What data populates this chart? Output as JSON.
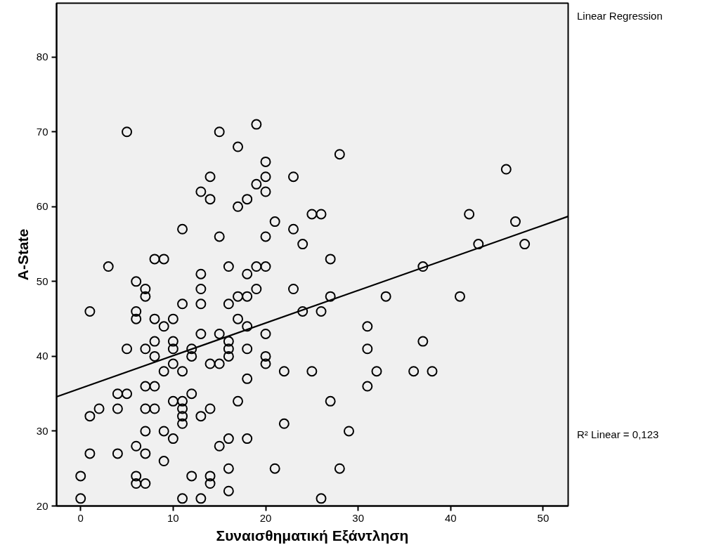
{
  "chart_data": {
    "type": "scatter",
    "xlabel": "Συναισθηματική Εξάντληση",
    "ylabel": "A-State",
    "annotations": [
      "Linear Regression",
      "R² Linear = 0,123"
    ],
    "xlim": [
      -2.6,
      52.7
    ],
    "ylim": [
      20,
      87.2
    ],
    "xticks": [
      0,
      10,
      20,
      30,
      40,
      50
    ],
    "yticks": [
      20,
      30,
      40,
      50,
      60,
      70,
      80
    ],
    "grid": false,
    "series": [
      {
        "color": "#000000",
        "marker": "circle",
        "x": [
          5,
          15,
          19,
          17,
          28,
          20,
          46,
          14,
          20,
          23,
          19,
          13,
          20,
          14,
          18,
          17,
          25,
          26,
          42,
          21,
          47,
          11,
          23,
          15,
          20,
          24,
          43,
          48,
          8,
          9,
          27,
          3,
          16,
          19,
          20,
          37,
          13,
          18,
          6,
          7,
          13,
          19,
          23,
          7,
          17,
          18,
          27,
          33,
          41,
          11,
          13,
          16,
          1,
          6,
          24,
          26,
          6,
          8,
          10,
          17,
          9,
          18,
          31,
          13,
          15,
          20,
          8,
          10,
          16,
          37,
          5,
          7,
          10,
          12,
          16,
          18,
          31,
          8,
          12,
          16,
          20,
          10,
          14,
          15,
          20,
          9,
          11,
          22,
          25,
          32,
          36,
          38,
          18,
          7,
          8,
          31,
          4,
          5,
          12,
          10,
          11,
          17,
          27,
          2,
          4,
          7,
          8,
          11,
          14,
          1,
          11,
          13,
          11,
          22,
          7,
          9,
          29,
          10,
          16,
          18,
          6,
          15,
          1,
          4,
          7,
          9,
          16,
          21,
          28,
          0,
          6,
          12,
          14,
          6,
          7,
          14,
          16,
          0,
          11,
          13,
          26
        ],
        "values": [
          70,
          70,
          71,
          68,
          67,
          66,
          65,
          64,
          64,
          64,
          63,
          62,
          62,
          61,
          61,
          60,
          59,
          59,
          59,
          58,
          58,
          57,
          57,
          56,
          56,
          55,
          55,
          55,
          53,
          53,
          53,
          52,
          52,
          52,
          52,
          52,
          51,
          51,
          50,
          49,
          49,
          49,
          49,
          48,
          48,
          48,
          48,
          48,
          48,
          47,
          47,
          47,
          46,
          46,
          46,
          46,
          45,
          45,
          45,
          45,
          44,
          44,
          44,
          43,
          43,
          43,
          42,
          42,
          42,
          42,
          41,
          41,
          41,
          41,
          41,
          41,
          41,
          40,
          40,
          40,
          40,
          39,
          39,
          39,
          39,
          38,
          38,
          38,
          38,
          38,
          38,
          38,
          37,
          36,
          36,
          36,
          35,
          35,
          35,
          34,
          34,
          34,
          34,
          33,
          33,
          33,
          33,
          33,
          33,
          32,
          32,
          32,
          31,
          31,
          30,
          30,
          30,
          29,
          29,
          29,
          28,
          28,
          27,
          27,
          27,
          26,
          25,
          25,
          25,
          24,
          24,
          24,
          24,
          23,
          23,
          23,
          22,
          21,
          21,
          21,
          21
        ]
      },
      {
        "type": "line",
        "color": "#000000",
        "x": [
          -2.6,
          52.7
        ],
        "values": [
          34.6,
          58.7
        ]
      }
    ]
  }
}
